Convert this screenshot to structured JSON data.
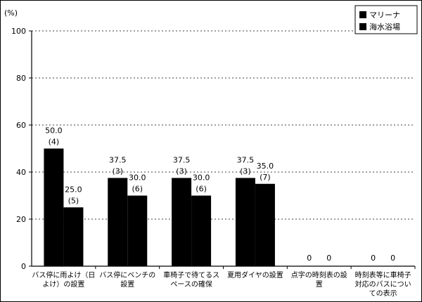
{
  "chart_data": {
    "type": "bar",
    "unit_label": "(%)",
    "ylim": [
      0,
      100
    ],
    "yticks": [
      "0",
      "20",
      "40",
      "60",
      "80",
      "100"
    ],
    "categories": [
      [
        "バス停に雨よけ（日",
        "よけ）の設置"
      ],
      [
        "バス停にベンチの",
        "設置"
      ],
      [
        "車椅子で待てるス",
        "ペースの確保"
      ],
      [
        "夏用ダイヤの設置"
      ],
      [
        "点字の時刻表の設",
        "置"
      ],
      [
        "時刻表等に車椅子",
        "対応のバスについ",
        "ての表示"
      ]
    ],
    "series": [
      {
        "name": "マリーナ",
        "values": [
          50.0,
          37.5,
          37.5,
          37.5,
          0,
          0
        ],
        "labels": [
          "50.0",
          "37.5",
          "37.5",
          "37.5",
          "0",
          "0"
        ],
        "counts": [
          "(4)",
          "(3)",
          "(3)",
          "(3)",
          "",
          ""
        ]
      },
      {
        "name": "海水浴場",
        "values": [
          25.0,
          30.0,
          30.0,
          35.0,
          0,
          0
        ],
        "labels": [
          "25.0",
          "30.0",
          "30.0",
          "35.0",
          "0",
          "0"
        ],
        "counts": [
          "(5)",
          "(6)",
          "(6)",
          "(7)",
          "",
          ""
        ]
      }
    ],
    "legend_position": "top-right",
    "grid": "dashed horizontal",
    "colors": {
      "bar": "#000000",
      "axis": "#000000",
      "grid": "#000000"
    }
  }
}
